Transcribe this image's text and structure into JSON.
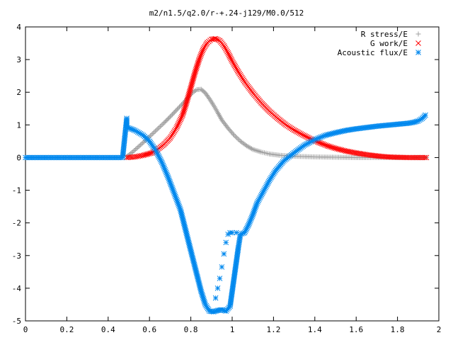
{
  "chart_data": {
    "type": "scatter",
    "title": "m2/n1.5/q2.0/r-+.24-j129/M0.0/512",
    "xlabel": "",
    "ylabel": "",
    "xlim": [
      0,
      2
    ],
    "ylim": [
      -5,
      4
    ],
    "xticks": [
      "0",
      "0.2",
      "0.4",
      "0.6",
      "0.8",
      "1",
      "1.2",
      "1.4",
      "1.6",
      "1.8",
      "2"
    ],
    "yticks": [
      "4",
      "3",
      "2",
      "1",
      "0",
      "-1",
      "-2",
      "-3",
      "-4",
      "-5"
    ],
    "grid": false,
    "legend_position": "top-right",
    "series": [
      {
        "name": "R stress/E",
        "marker": "plus",
        "color": "#a0a0a0",
        "points": [
          [
            0.49,
            0.03
          ],
          [
            0.52,
            0.18
          ],
          [
            0.55,
            0.35
          ],
          [
            0.58,
            0.52
          ],
          [
            0.61,
            0.7
          ],
          [
            0.64,
            0.88
          ],
          [
            0.67,
            1.06
          ],
          [
            0.7,
            1.25
          ],
          [
            0.73,
            1.45
          ],
          [
            0.76,
            1.65
          ],
          [
            0.79,
            1.86
          ],
          [
            0.81,
            2.0
          ],
          [
            0.83,
            2.08
          ],
          [
            0.85,
            2.09
          ],
          [
            0.87,
            1.98
          ],
          [
            0.89,
            1.8
          ],
          [
            0.91,
            1.6
          ],
          [
            0.93,
            1.38
          ],
          [
            0.95,
            1.15
          ],
          [
            0.98,
            0.9
          ],
          [
            1.01,
            0.68
          ],
          [
            1.04,
            0.5
          ],
          [
            1.07,
            0.36
          ],
          [
            1.1,
            0.25
          ],
          [
            1.14,
            0.17
          ],
          [
            1.18,
            0.11
          ],
          [
            1.23,
            0.07
          ],
          [
            1.3,
            0.04
          ],
          [
            1.4,
            0.02
          ],
          [
            1.5,
            0.01
          ],
          [
            1.6,
            0.0
          ],
          [
            1.7,
            0.0
          ],
          [
            1.8,
            0.0
          ],
          [
            1.9,
            0.0
          ],
          [
            1.94,
            0.0
          ]
        ]
      },
      {
        "name": "G work/E",
        "marker": "cross",
        "color": "#ff0000",
        "points": [
          [
            0.49,
            0.0
          ],
          [
            0.53,
            0.02
          ],
          [
            0.57,
            0.07
          ],
          [
            0.61,
            0.14
          ],
          [
            0.64,
            0.25
          ],
          [
            0.67,
            0.4
          ],
          [
            0.7,
            0.6
          ],
          [
            0.73,
            0.9
          ],
          [
            0.76,
            1.3
          ],
          [
            0.78,
            1.7
          ],
          [
            0.8,
            2.15
          ],
          [
            0.82,
            2.6
          ],
          [
            0.84,
            3.0
          ],
          [
            0.86,
            3.32
          ],
          [
            0.88,
            3.52
          ],
          [
            0.9,
            3.62
          ],
          [
            0.92,
            3.64
          ],
          [
            0.94,
            3.58
          ],
          [
            0.96,
            3.42
          ],
          [
            0.98,
            3.2
          ],
          [
            1.0,
            2.95
          ],
          [
            1.03,
            2.62
          ],
          [
            1.06,
            2.32
          ],
          [
            1.1,
            1.98
          ],
          [
            1.14,
            1.68
          ],
          [
            1.18,
            1.42
          ],
          [
            1.22,
            1.2
          ],
          [
            1.26,
            1.0
          ],
          [
            1.3,
            0.84
          ],
          [
            1.34,
            0.7
          ],
          [
            1.38,
            0.57
          ],
          [
            1.42,
            0.46
          ],
          [
            1.46,
            0.36
          ],
          [
            1.5,
            0.28
          ],
          [
            1.55,
            0.2
          ],
          [
            1.6,
            0.14
          ],
          [
            1.65,
            0.09
          ],
          [
            1.7,
            0.05
          ],
          [
            1.75,
            0.02
          ],
          [
            1.8,
            0.01
          ],
          [
            1.85,
            0.0
          ],
          [
            1.9,
            0.0
          ],
          [
            1.94,
            0.0
          ]
        ]
      },
      {
        "name": "Acoustic flux/E",
        "marker": "star",
        "color": "#0088ee",
        "points": [
          [
            0.0,
            0.0
          ],
          [
            0.1,
            0.0
          ],
          [
            0.2,
            0.0
          ],
          [
            0.3,
            0.0
          ],
          [
            0.4,
            0.0
          ],
          [
            0.47,
            0.0
          ],
          [
            0.49,
            1.2
          ],
          [
            0.49,
            0.93
          ],
          [
            0.53,
            0.83
          ],
          [
            0.57,
            0.68
          ],
          [
            0.6,
            0.5
          ],
          [
            0.63,
            0.22
          ],
          [
            0.66,
            -0.15
          ],
          [
            0.69,
            -0.6
          ],
          [
            0.72,
            -1.1
          ],
          [
            0.75,
            -1.6
          ],
          [
            0.77,
            -2.1
          ],
          [
            0.79,
            -2.6
          ],
          [
            0.81,
            -3.1
          ],
          [
            0.83,
            -3.6
          ],
          [
            0.85,
            -4.1
          ],
          [
            0.87,
            -4.5
          ],
          [
            0.89,
            -4.7
          ],
          [
            0.91,
            -4.72
          ],
          [
            0.93,
            -4.68
          ],
          [
            0.95,
            -4.66
          ],
          [
            0.97,
            -4.7
          ],
          [
            0.99,
            -4.55
          ],
          [
            1.0,
            -4.1
          ],
          [
            1.01,
            -3.65
          ],
          [
            1.02,
            -3.2
          ],
          [
            1.03,
            -2.75
          ],
          [
            1.04,
            -2.35
          ],
          [
            1.06,
            -2.3
          ],
          [
            1.08,
            -2.05
          ],
          [
            1.1,
            -1.75
          ],
          [
            1.12,
            -1.4
          ],
          [
            1.15,
            -1.05
          ],
          [
            1.18,
            -0.7
          ],
          [
            1.21,
            -0.4
          ],
          [
            1.25,
            -0.1
          ],
          [
            1.3,
            0.15
          ],
          [
            1.35,
            0.38
          ],
          [
            1.4,
            0.55
          ],
          [
            1.45,
            0.68
          ],
          [
            1.5,
            0.76
          ],
          [
            1.55,
            0.83
          ],
          [
            1.6,
            0.88
          ],
          [
            1.65,
            0.92
          ],
          [
            1.7,
            0.96
          ],
          [
            1.75,
            0.99
          ],
          [
            1.8,
            1.02
          ],
          [
            1.85,
            1.05
          ],
          [
            1.88,
            1.08
          ],
          [
            1.9,
            1.12
          ],
          [
            1.92,
            1.2
          ],
          [
            1.935,
            1.3
          ]
        ],
        "extra_points": [
          [
            0.92,
            -4.3
          ],
          [
            0.93,
            -4.0
          ],
          [
            0.94,
            -3.7
          ],
          [
            0.95,
            -3.35
          ],
          [
            0.96,
            -2.95
          ],
          [
            0.97,
            -2.6
          ],
          [
            0.98,
            -2.35
          ],
          [
            0.99,
            -2.3
          ],
          [
            1.0,
            -2.3
          ],
          [
            1.02,
            -2.3
          ]
        ]
      }
    ]
  }
}
